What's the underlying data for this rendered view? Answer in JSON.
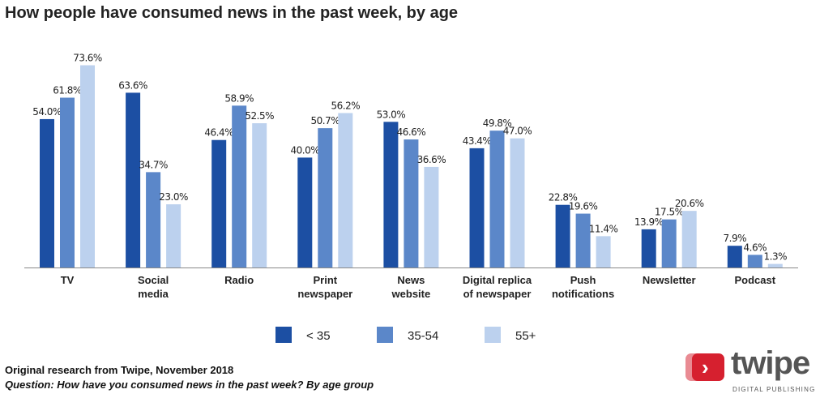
{
  "chart_data": {
    "type": "bar",
    "title": "How people have consumed news in the past week, by age",
    "categories": [
      [
        "TV"
      ],
      [
        "Social",
        "media"
      ],
      [
        "Radio"
      ],
      [
        "Print",
        "newspaper"
      ],
      [
        "News",
        "website"
      ],
      [
        "Digital replica",
        "of newspaper"
      ],
      [
        "Push",
        "notifications"
      ],
      [
        "Newsletter"
      ],
      [
        "Podcast"
      ]
    ],
    "series": [
      {
        "name": "< 35",
        "color": "#1c4fa3",
        "values": [
          54.0,
          63.6,
          46.4,
          40.0,
          53.0,
          43.4,
          22.8,
          13.9,
          7.9
        ]
      },
      {
        "name": "35-54",
        "color": "#5b87c9",
        "values": [
          61.8,
          34.7,
          58.9,
          50.7,
          46.6,
          49.8,
          19.6,
          17.5,
          4.6
        ]
      },
      {
        "name": "55+",
        "color": "#bcd1ee",
        "values": [
          73.6,
          23.0,
          52.5,
          56.2,
          36.6,
          47.0,
          11.4,
          20.6,
          1.3
        ]
      }
    ],
    "value_suffix": "%",
    "ylim": [
      0,
      75
    ],
    "grid": false,
    "legend": "bottom"
  },
  "footer": {
    "source": "Original research from Twipe, November 2018",
    "question": "Question: How have you consumed news in the past week? By age group"
  },
  "logo": {
    "word": "twipe",
    "sub": "DIGITAL PUBLISHING"
  }
}
